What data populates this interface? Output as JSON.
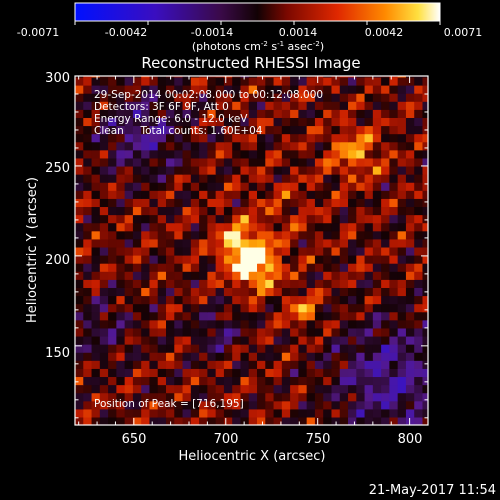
{
  "colorbar": {
    "tick_labels": [
      "-0.0071",
      "-0.0042",
      "-0.0014",
      "0.0014",
      "0.0042",
      "0.0071"
    ],
    "units_main": "(photons cm",
    "units_exp1": "-2",
    "units_mid1": " s",
    "units_exp2": "-1",
    "units_mid2": " asec",
    "units_exp3": "-2",
    "units_end": ")"
  },
  "image": {
    "title": "Reconstructed RHESSI Image",
    "xlabel": "Heliocentric X (arcsec)",
    "ylabel": "Heliocentric Y (arcsec)",
    "x_ticks": [
      "650",
      "700",
      "750",
      "800"
    ],
    "y_ticks": [
      "150",
      "200",
      "250",
      "300"
    ],
    "x_range": [
      618,
      810
    ],
    "y_range": [
      106,
      300
    ],
    "annotation": {
      "line1": "29-Sep-2014 00:02:08.000 to 00:12:08.000",
      "line2": "Detectors: 3F 6F 9F, Att 0",
      "line3": "Energy Range: 6.0 - 12.0 keV",
      "line4": "Clean     Total counts: 1.60E+04",
      "peak": "Position of Peak = [716,195]"
    },
    "peak": [
      716,
      195
    ]
  },
  "footer": {
    "timestamp": "21-May-2017 11:54"
  }
}
